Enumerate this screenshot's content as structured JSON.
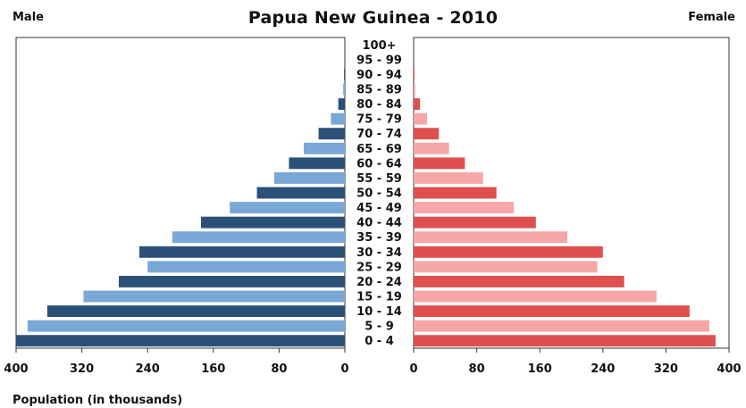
{
  "chart_data": {
    "type": "bar",
    "title": "Papua New Guinea - 2010",
    "left_label": "Male",
    "right_label": "Female",
    "xlabel": "Population (in thousands)",
    "xlim": [
      0,
      400
    ],
    "x_ticks": [
      400,
      320,
      240,
      160,
      80,
      0
    ],
    "x_ticks_right": [
      0,
      80,
      160,
      240,
      320,
      400
    ],
    "categories": [
      "100+",
      "95 - 99",
      "90 - 94",
      "85 - 89",
      "80 - 84",
      "75 - 79",
      "70 - 74",
      "65 - 69",
      "60 - 64",
      "55 - 59",
      "50 - 54",
      "45 - 49",
      "40 - 44",
      "35 - 39",
      "30 - 34",
      "25 - 29",
      "20 - 24",
      "15 - 19",
      "10 - 14",
      "5 - 9",
      "0 - 4"
    ],
    "series": [
      {
        "name": "Male",
        "values": [
          0,
          0,
          1,
          2,
          8,
          17,
          32,
          50,
          68,
          86,
          107,
          140,
          175,
          210,
          250,
          240,
          275,
          318,
          362,
          386,
          400
        ]
      },
      {
        "name": "Female",
        "values": [
          0,
          0,
          1,
          2,
          8,
          17,
          32,
          45,
          65,
          88,
          105,
          127,
          155,
          195,
          240,
          233,
          267,
          308,
          350,
          375,
          383
        ]
      }
    ],
    "colors": {
      "male_dark": "#2c5178",
      "male_light": "#79a8d6",
      "female_dark": "#e04f4f",
      "female_light": "#f6a6a6",
      "frame": "#333333"
    },
    "grid": false,
    "legend": "none"
  }
}
